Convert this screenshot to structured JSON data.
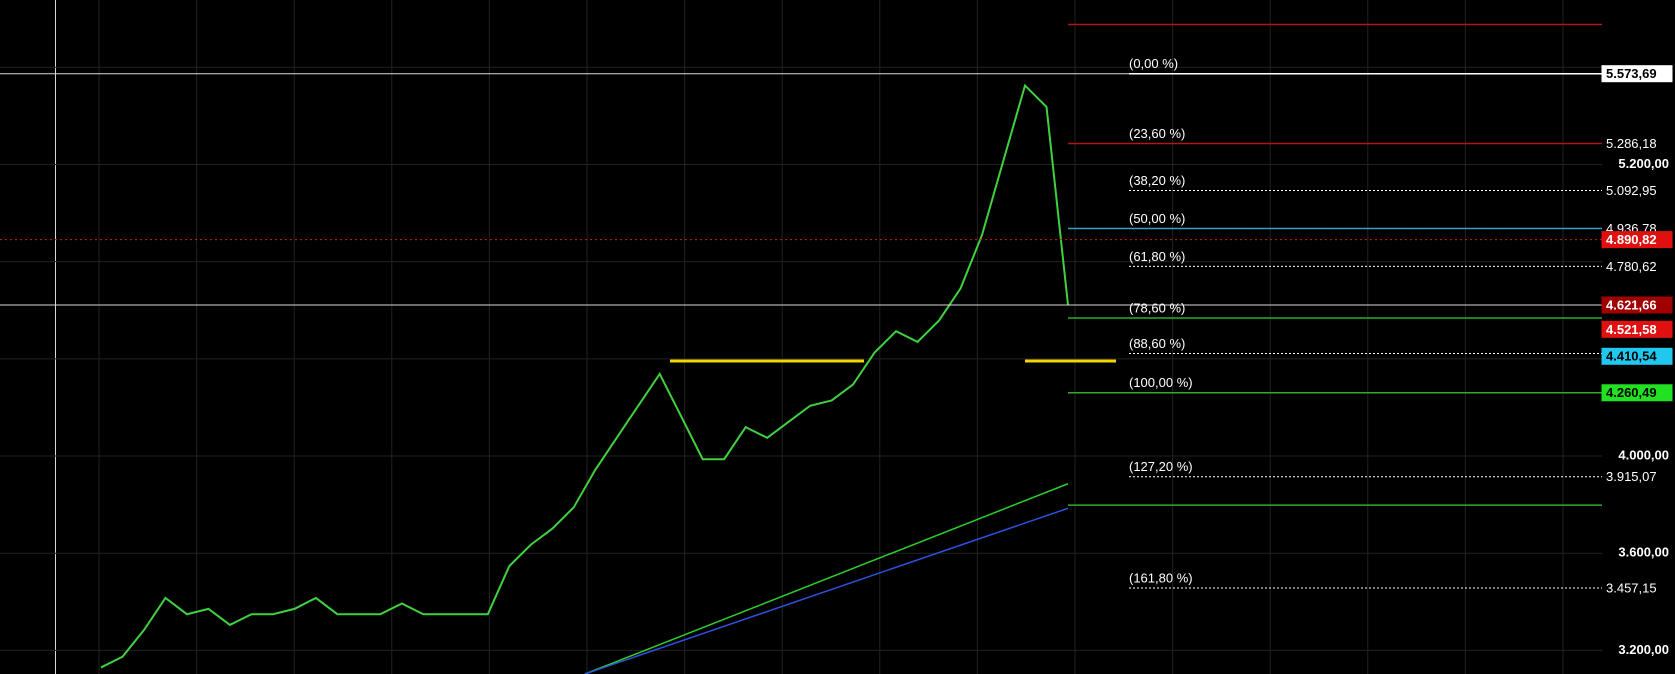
{
  "chart_data": {
    "type": "line",
    "ylim": [
      3103,
      5877
    ],
    "yticks": [
      {
        "value": 5200,
        "label": "5.200,00"
      },
      {
        "value": 4000,
        "label": "4.000,00"
      },
      {
        "value": 3600,
        "label": "3.600,00"
      },
      {
        "value": 3200,
        "label": "3.200,00"
      }
    ],
    "minor_grid": [
      5600,
      4800,
      4400
    ],
    "grid": true,
    "price": {
      "color": "#3fd13f",
      "values": [
        3130,
        3174,
        3284,
        3416,
        3349,
        3371,
        3305,
        3349,
        3349,
        3371,
        3416,
        3349,
        3349,
        3349,
        3393,
        3349,
        3349,
        3349,
        3349,
        3547,
        3635,
        3701,
        3789,
        3943,
        4075,
        4207,
        4338,
        4163,
        3987,
        3987,
        4119,
        4075,
        4141,
        4207,
        4229,
        4295,
        4426,
        4514,
        4470,
        4558,
        4690,
        4910,
        5218,
        5525,
        5437,
        4622
      ]
    },
    "moving_averages": [
      {
        "color": "#2ecc2e",
        "values": [
          3103,
          3886
        ]
      },
      {
        "color": "#3050e0",
        "values": [
          3103,
          3785
        ]
      }
    ],
    "resistance": {
      "color": "#f2d600",
      "value": 4391
    },
    "fib_levels": [
      {
        "label": "(0,00 %)",
        "value": 5573.69,
        "color": "#ffffff",
        "style": "solid"
      },
      {
        "label": "(23,60 %)",
        "value": 5286.18,
        "color": "#b01818",
        "style": "solid"
      },
      {
        "label": "(38,20 %)",
        "value": 5092.95,
        "color": "#ffffff",
        "style": "dotted"
      },
      {
        "label": "(50,00 %)",
        "value": 4936.78,
        "color": "#3a9fc0",
        "style": "solid"
      },
      {
        "label": "(61,80 %)",
        "value": 4780.62,
        "color": "#ffffff",
        "style": "dotted"
      },
      {
        "label": "(78,60 %)",
        "value": 4568,
        "color": "#2faa2f",
        "style": "solid"
      },
      {
        "label": "(88,60 %)",
        "value": 4422,
        "color": "#ffffff",
        "style": "dotted"
      },
      {
        "label": "(100,00 %)",
        "value": 4260.49,
        "color": "#2faa2f",
        "style": "solid"
      },
      {
        "label": "(127,20 %)",
        "value": 3915.07,
        "color": "#ffffff",
        "style": "dotted"
      },
      {
        "label": "(161,80 %)",
        "value": 3457.15,
        "color": "#ffffff",
        "style": "dotted"
      }
    ],
    "extra_lines": [
      {
        "value": 5776,
        "color": "#b01818"
      },
      {
        "value": 3798,
        "color": "#2faa2f"
      }
    ],
    "crosshair_lines": [
      {
        "value": 5573.69,
        "color": "#d8d8d8",
        "style": "solid"
      },
      {
        "value": 4890.82,
        "color": "#d02020",
        "style": "dotted"
      },
      {
        "value": 4621.66,
        "color": "#d8d8d8",
        "style": "solid"
      }
    ],
    "price_labels": [
      {
        "value": 5573.69,
        "label": "5.573,69",
        "bg": "#ffffff",
        "fg": "#000000"
      },
      {
        "value": 5286.18,
        "label": "5.286,18",
        "bg": "#000000",
        "fg": "#ffffff"
      },
      {
        "value": 5092.95,
        "label": "5.092,95",
        "bg": "#000000",
        "fg": "#ffffff"
      },
      {
        "value": 4936.78,
        "label": "4.936,78",
        "bg": "#000000",
        "fg": "#ffffff"
      },
      {
        "value": 4890.82,
        "label": "4.890,82",
        "bg": "#e01010",
        "fg": "#ffffff"
      },
      {
        "value": 4780.62,
        "label": "4.780,62",
        "bg": "#000000",
        "fg": "#ffffff"
      },
      {
        "value": 4621.66,
        "label": "4.621,66",
        "bg": "#a00000",
        "fg": "#ffffff"
      },
      {
        "value": 4521.58,
        "label": "4.521,58",
        "bg": "#e01010",
        "fg": "#ffffff"
      },
      {
        "value": 4410.54,
        "label": "4.410,54",
        "bg": "#20c8f0",
        "fg": "#000000"
      },
      {
        "value": 4260.49,
        "label": "4.260,49",
        "bg": "#22e022",
        "fg": "#000000"
      },
      {
        "value": 3915.07,
        "label": "3.915,07",
        "bg": "#000000",
        "fg": "#ffffff"
      },
      {
        "value": 3457.15,
        "label": "3.457,15",
        "bg": "#000000",
        "fg": "#ffffff"
      }
    ]
  }
}
